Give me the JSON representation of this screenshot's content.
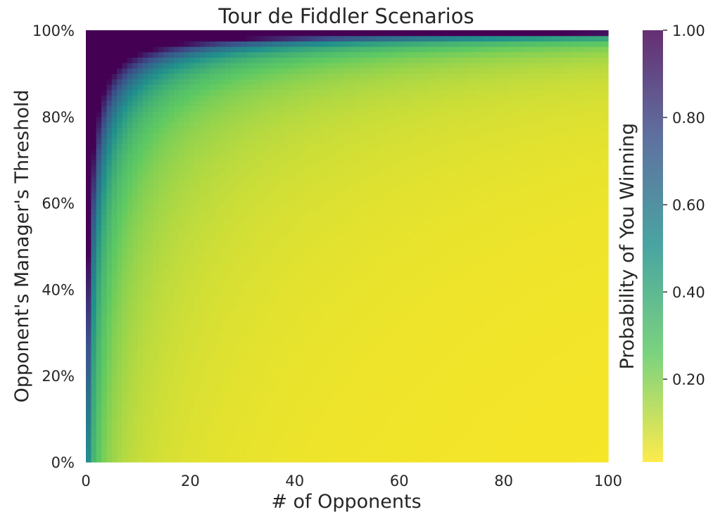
{
  "chart_data": {
    "type": "heatmap",
    "title": "Tour de Fiddler Scenarios",
    "xlabel": "# of Opponents",
    "ylabel": "Opponent's Manager's Threshold",
    "xlim": [
      0,
      100
    ],
    "ylim": [
      0,
      1
    ],
    "x_ticks": [
      {
        "value": 0,
        "label": "0"
      },
      {
        "value": 20,
        "label": "20"
      },
      {
        "value": 40,
        "label": "40"
      },
      {
        "value": 60,
        "label": "60"
      },
      {
        "value": 80,
        "label": "80"
      },
      {
        "value": 100,
        "label": "100"
      }
    ],
    "y_ticks": [
      {
        "value": 0,
        "label": "0%"
      },
      {
        "value": 0.2,
        "label": "20%"
      },
      {
        "value": 0.4,
        "label": "40%"
      },
      {
        "value": 0.6,
        "label": "60%"
      },
      {
        "value": 0.8,
        "label": "80%"
      },
      {
        "value": 1.0,
        "label": "100%"
      }
    ],
    "colorbar": {
      "label": "Probability of You Winning",
      "range": [
        0.01,
        1.0
      ],
      "colormap": "viridis_r",
      "ticks": [
        {
          "value": 0.2,
          "label": "0.20"
        },
        {
          "value": 0.4,
          "label": "0.40"
        },
        {
          "value": 0.6,
          "label": "0.60"
        },
        {
          "value": 0.8,
          "label": "0.80"
        },
        {
          "value": 1.0,
          "label": "1.00"
        }
      ]
    },
    "grid": false
  }
}
